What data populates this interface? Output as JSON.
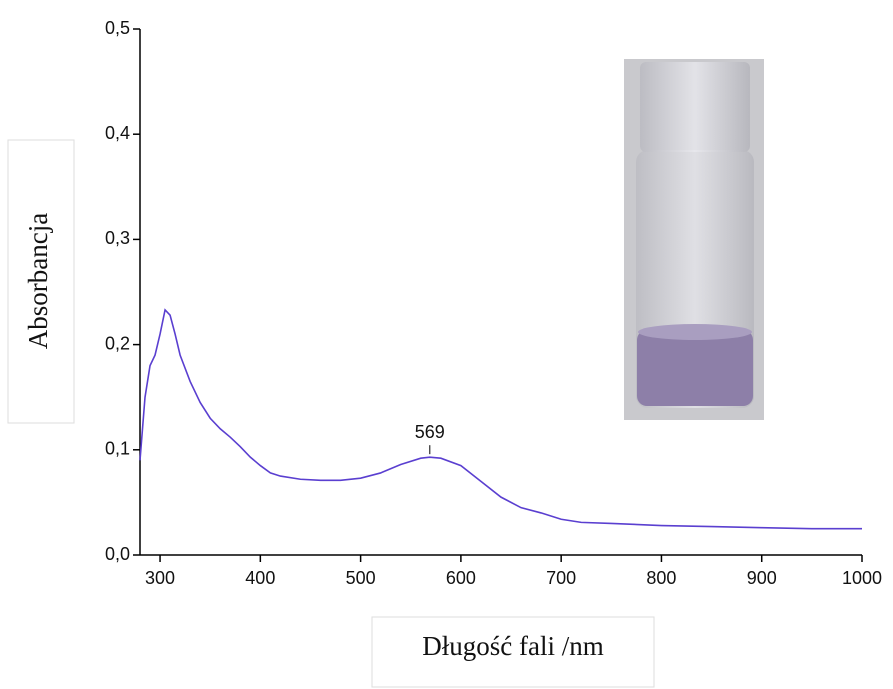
{
  "chart_data": {
    "type": "line",
    "xlabel": "Długość fali /nm",
    "ylabel": "Absorbancja",
    "x": [
      280,
      285,
      290,
      295,
      300,
      305,
      310,
      315,
      320,
      330,
      340,
      350,
      360,
      370,
      380,
      390,
      400,
      410,
      420,
      440,
      460,
      480,
      500,
      520,
      540,
      560,
      569,
      580,
      600,
      620,
      640,
      660,
      680,
      700,
      720,
      750,
      800,
      850,
      900,
      950,
      1000
    ],
    "series": [
      {
        "name": "Absorbancja",
        "color": "#5a3fd0",
        "values": [
          0.09,
          0.15,
          0.18,
          0.19,
          0.21,
          0.233,
          0.228,
          0.21,
          0.19,
          0.165,
          0.145,
          0.13,
          0.12,
          0.112,
          0.103,
          0.093,
          0.085,
          0.078,
          0.075,
          0.072,
          0.071,
          0.071,
          0.073,
          0.078,
          0.086,
          0.092,
          0.093,
          0.092,
          0.085,
          0.07,
          0.055,
          0.045,
          0.04,
          0.034,
          0.031,
          0.03,
          0.028,
          0.027,
          0.026,
          0.025,
          0.025
        ]
      }
    ],
    "peak_annotation": 569,
    "xlim": [
      280,
      1000
    ],
    "xticks": [
      300,
      400,
      500,
      600,
      700,
      800,
      900,
      1000
    ],
    "ylim": [
      0,
      0.5
    ],
    "yticks": [
      {
        "value": 0,
        "label": "0,0"
      },
      {
        "value": 0.1,
        "label": "0,1"
      },
      {
        "value": 0.2,
        "label": "0,2"
      },
      {
        "value": 0.3,
        "label": "0,3"
      },
      {
        "value": 0.4,
        "label": "0,4"
      },
      {
        "value": 0.5,
        "label": "0,5"
      }
    ],
    "grid": false
  }
}
